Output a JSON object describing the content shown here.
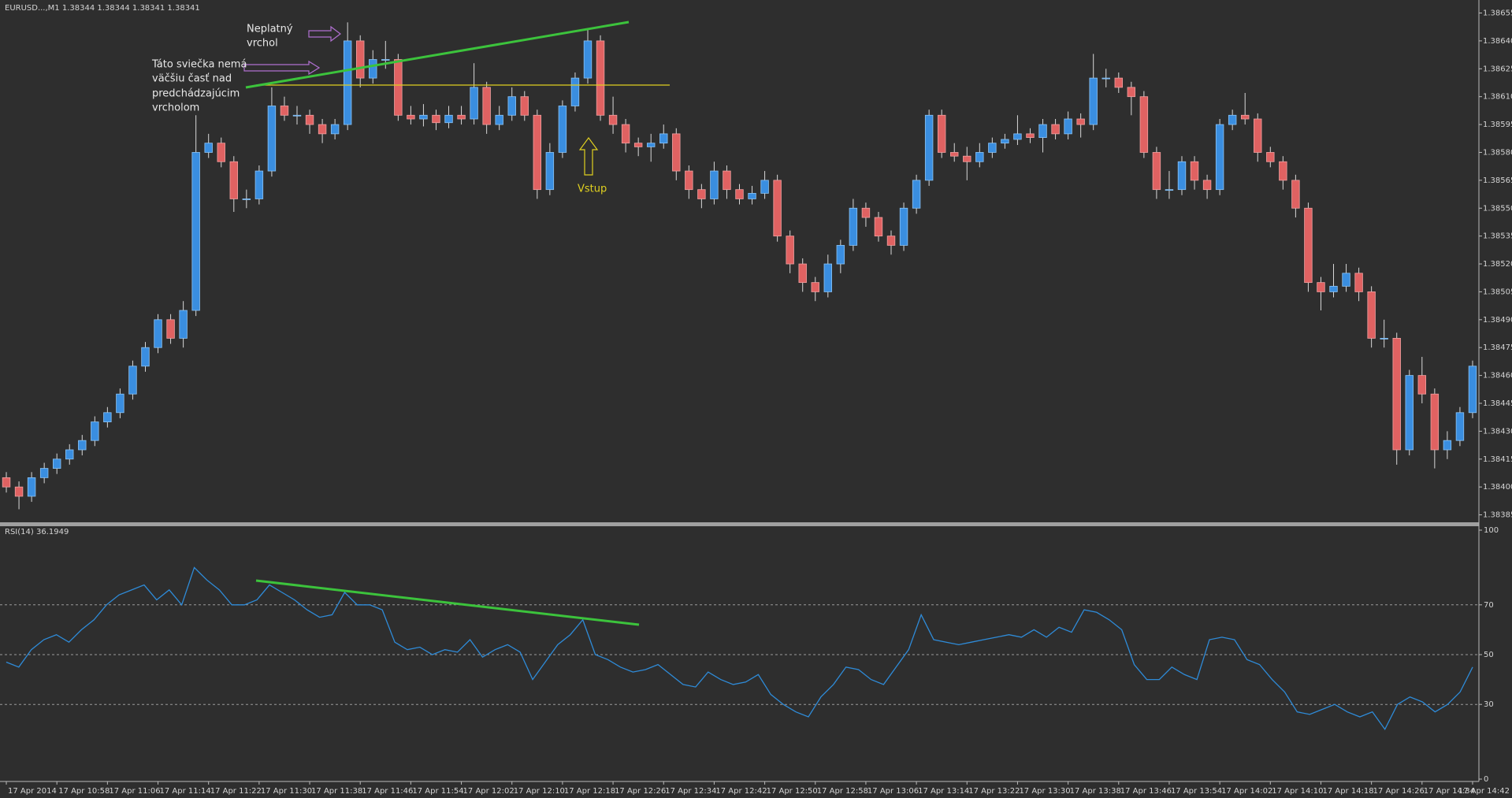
{
  "chart_data": [
    {
      "type": "candlestick",
      "title": "EURUSD...,M1  1.38344 1.38344 1.38341 1.38341",
      "categories": [
        "17 Apr 2014",
        null,
        null,
        null,
        "17 Apr 10:58",
        null,
        null,
        null,
        "17 Apr 11:06",
        null,
        null,
        null,
        "17 Apr 11:14",
        null,
        null,
        null,
        "17 Apr 11:22",
        null,
        null,
        null,
        "17 Apr 11:30",
        null,
        null,
        null,
        "17 Apr 11:38",
        null,
        null,
        null,
        "17 Apr 11:46",
        null,
        null,
        null,
        "17 Apr 11:54",
        null,
        null,
        null,
        "17 Apr 12:02",
        null,
        null,
        null,
        "17 Apr 12:10",
        null,
        null,
        null,
        "17 Apr 12:18",
        null,
        null,
        null,
        "17 Apr 12:26",
        null,
        null,
        null,
        "17 Apr 12:34",
        null,
        null,
        null,
        "17 Apr 12:42",
        null,
        null,
        null,
        "17 Apr 12:50",
        null,
        null,
        null,
        "17 Apr 12:58",
        null,
        null,
        null,
        "17 Apr 13:06",
        null,
        null,
        null,
        "17 Apr 13:14",
        null,
        null,
        null,
        "17 Apr 13:22",
        null,
        null,
        null,
        "17 Apr 13:30",
        null,
        null,
        null,
        "17 Apr 13:38",
        null,
        null,
        null,
        "17 Apr 13:46",
        null,
        null,
        null,
        "17 Apr 13:54",
        null,
        null,
        null,
        "17 Apr 14:02",
        null,
        null,
        null,
        "17 Apr 14:10",
        null,
        null,
        null,
        "17 Apr 14:18",
        null,
        null,
        null,
        "17 Apr 14:26",
        null,
        null,
        null,
        "17 Apr 14:34",
        null,
        null,
        null,
        "17 Apr 14:42"
      ],
      "open": [
        1.38405,
        1.384,
        1.38395,
        1.38405,
        1.3841,
        1.38415,
        1.3842,
        1.38425,
        1.38435,
        1.3844,
        1.3845,
        1.38465,
        1.38475,
        1.3849,
        1.3848,
        1.38495,
        1.3858,
        1.38585,
        1.38575,
        1.38555,
        1.38555,
        1.3857,
        1.38605,
        1.386,
        1.386,
        1.38595,
        1.3859,
        1.38595,
        1.3864,
        1.3862,
        1.3863,
        1.3863,
        1.386,
        1.38598,
        1.386,
        1.38596,
        1.386,
        1.38598,
        1.38615,
        1.38595,
        1.386,
        1.3861,
        1.386,
        1.3856,
        1.3858,
        1.38605,
        1.3862,
        1.3864,
        1.386,
        1.38595,
        1.38585,
        1.38583,
        1.38585,
        1.3859,
        1.3857,
        1.3856,
        1.38555,
        1.3857,
        1.3856,
        1.38555,
        1.38558,
        1.38565,
        1.38535,
        1.3852,
        1.3851,
        1.38505,
        1.3852,
        1.3853,
        1.3855,
        1.38545,
        1.38535,
        1.3853,
        1.3855,
        1.38565,
        1.386,
        1.3858,
        1.38578,
        1.38575,
        1.3858,
        1.38585,
        1.38587,
        1.3859,
        1.38588,
        1.38595,
        1.3859,
        1.38598,
        1.38595,
        1.3862,
        1.3862,
        1.38615,
        1.3861,
        1.3858,
        1.3856,
        1.3856,
        1.38575,
        1.38565,
        1.3856,
        1.38595,
        1.386,
        1.38598,
        1.3858,
        1.38575,
        1.38565,
        1.3855,
        1.3851,
        1.38505,
        1.38508,
        1.38515,
        1.38505,
        1.3848,
        1.3848,
        1.3842,
        1.3846,
        1.3845,
        1.3842,
        1.38425,
        1.3844
      ],
      "high": [
        1.38408,
        1.38403,
        1.38408,
        1.38413,
        1.38418,
        1.38423,
        1.38428,
        1.38438,
        1.38443,
        1.38453,
        1.38468,
        1.38478,
        1.38493,
        1.38493,
        1.385,
        1.386,
        1.3859,
        1.38588,
        1.38578,
        1.3856,
        1.38573,
        1.38615,
        1.3861,
        1.38605,
        1.38603,
        1.38598,
        1.38598,
        1.3865,
        1.38643,
        1.38635,
        1.3864,
        1.38633,
        1.38605,
        1.38606,
        1.38603,
        1.38605,
        1.38605,
        1.38628,
        1.38618,
        1.38605,
        1.38615,
        1.38613,
        1.38603,
        1.38585,
        1.38608,
        1.38623,
        1.38646,
        1.38643,
        1.3861,
        1.38598,
        1.38588,
        1.3859,
        1.38595,
        1.38593,
        1.38573,
        1.38563,
        1.38575,
        1.38573,
        1.38563,
        1.38562,
        1.3857,
        1.38568,
        1.38538,
        1.38523,
        1.38513,
        1.38525,
        1.38533,
        1.38555,
        1.38553,
        1.38548,
        1.38538,
        1.38553,
        1.38568,
        1.38603,
        1.38603,
        1.38585,
        1.38583,
        1.38585,
        1.38588,
        1.3859,
        1.386,
        1.38593,
        1.38598,
        1.38598,
        1.38602,
        1.38601,
        1.38633,
        1.38625,
        1.38623,
        1.38618,
        1.38613,
        1.38583,
        1.3857,
        1.38578,
        1.38578,
        1.38568,
        1.38598,
        1.38603,
        1.38612,
        1.38601,
        1.38583,
        1.38578,
        1.38568,
        1.38553,
        1.38513,
        1.3852,
        1.3852,
        1.38518,
        1.38508,
        1.3849,
        1.38483,
        1.38463,
        1.3847,
        1.38453,
        1.3843,
        1.38443,
        1.38468
      ],
      "low": [
        1.38397,
        1.38388,
        1.38392,
        1.38402,
        1.38407,
        1.38412,
        1.38417,
        1.38422,
        1.38432,
        1.38437,
        1.38447,
        1.38462,
        1.38472,
        1.38477,
        1.38475,
        1.38492,
        1.38577,
        1.38572,
        1.38548,
        1.3855,
        1.38552,
        1.38567,
        1.38597,
        1.38595,
        1.3859,
        1.38585,
        1.38587,
        1.38592,
        1.38615,
        1.38617,
        1.38625,
        1.38597,
        1.38595,
        1.38594,
        1.38592,
        1.38593,
        1.38595,
        1.38595,
        1.3859,
        1.38592,
        1.38597,
        1.38597,
        1.38555,
        1.38557,
        1.38577,
        1.38602,
        1.38617,
        1.38597,
        1.3859,
        1.3858,
        1.38578,
        1.38575,
        1.38582,
        1.38565,
        1.38555,
        1.3855,
        1.38552,
        1.38555,
        1.38552,
        1.38552,
        1.38555,
        1.38532,
        1.38515,
        1.38505,
        1.385,
        1.38502,
        1.38515,
        1.38527,
        1.3854,
        1.38532,
        1.38525,
        1.38527,
        1.38547,
        1.38562,
        1.38577,
        1.38575,
        1.38565,
        1.38572,
        1.38577,
        1.38582,
        1.38584,
        1.38585,
        1.3858,
        1.38587,
        1.38587,
        1.38588,
        1.38592,
        1.38615,
        1.38612,
        1.386,
        1.38577,
        1.38555,
        1.38555,
        1.38557,
        1.3856,
        1.38555,
        1.38557,
        1.38592,
        1.38595,
        1.38575,
        1.38572,
        1.3856,
        1.38545,
        1.38505,
        1.38495,
        1.38502,
        1.38505,
        1.385,
        1.38475,
        1.38475,
        1.38412,
        1.38417,
        1.38445,
        1.3841,
        1.38415,
        1.38422,
        1.38437
      ],
      "close": [
        1.384,
        1.38395,
        1.38405,
        1.3841,
        1.38415,
        1.3842,
        1.38425,
        1.38435,
        1.3844,
        1.3845,
        1.38465,
        1.38475,
        1.3849,
        1.3848,
        1.38495,
        1.3858,
        1.38585,
        1.38575,
        1.38555,
        1.38555,
        1.3857,
        1.38605,
        1.386,
        1.386,
        1.38595,
        1.3859,
        1.38595,
        1.3864,
        1.3862,
        1.3863,
        1.3863,
        1.386,
        1.38598,
        1.386,
        1.38596,
        1.386,
        1.38598,
        1.38615,
        1.38595,
        1.386,
        1.3861,
        1.386,
        1.3856,
        1.3858,
        1.38605,
        1.3862,
        1.3864,
        1.386,
        1.38595,
        1.38585,
        1.38583,
        1.38585,
        1.3859,
        1.3857,
        1.3856,
        1.38555,
        1.3857,
        1.3856,
        1.38555,
        1.38558,
        1.38565,
        1.38535,
        1.3852,
        1.3851,
        1.38505,
        1.3852,
        1.3853,
        1.3855,
        1.38545,
        1.38535,
        1.3853,
        1.3855,
        1.38565,
        1.386,
        1.3858,
        1.38578,
        1.38575,
        1.3858,
        1.38585,
        1.38587,
        1.3859,
        1.38588,
        1.38595,
        1.3859,
        1.38598,
        1.38595,
        1.3862,
        1.3862,
        1.38615,
        1.3861,
        1.3858,
        1.3856,
        1.3856,
        1.38575,
        1.38565,
        1.3856,
        1.38595,
        1.386,
        1.38598,
        1.3858,
        1.38575,
        1.38565,
        1.3855,
        1.3851,
        1.38505,
        1.38508,
        1.38515,
        1.38505,
        1.3848,
        1.3848,
        1.3842,
        1.3846,
        1.3845,
        1.3842,
        1.38425,
        1.3844,
        1.38465
      ],
      "up_color": "#3a8ee0",
      "down_color": "#e06262",
      "ylim": [
        1.38381,
        1.38662
      ],
      "yticks": [
        1.38385,
        {
          "value": 1.384,
          "label": "1.38400"
        },
        1.38415,
        {
          "value": 1.3843,
          "label": "1.38430"
        },
        1.38445,
        {
          "value": 1.3846,
          "label": "1.38460"
        },
        1.38475,
        {
          "value": 1.3849,
          "label": "1.38490"
        },
        1.38505,
        {
          "value": 1.3852,
          "label": "1.38520"
        },
        1.38535,
        {
          "value": 1.3855,
          "label": "1.38550"
        },
        1.38565,
        {
          "value": 1.3858,
          "label": "1.38580"
        },
        1.38595,
        {
          "value": 1.3861,
          "label": "1.38610"
        },
        1.38625,
        {
          "value": 1.3864,
          "label": "1.38640"
        },
        1.38655
      ],
      "annotations": [
        "Neplatný",
        "vrchol",
        "Táto sviečka nemá",
        "väčšiu časť nad",
        "predchádzajúcim",
        "vrcholom",
        "Vstup"
      ]
    },
    {
      "type": "line",
      "title": "RSI(14) 36.1949",
      "series": [
        {
          "color": "#2e8bd8",
          "values": [
            47,
            45,
            52,
            56,
            58,
            55,
            60,
            64,
            70,
            74,
            76,
            78,
            72,
            76,
            70,
            85,
            80,
            76,
            70,
            70,
            72,
            78,
            75,
            72,
            68,
            65,
            66,
            75,
            70,
            70,
            68,
            55,
            52,
            53,
            50,
            52,
            51,
            56,
            49,
            52,
            54,
            51,
            40,
            47,
            54,
            58,
            64,
            50,
            48,
            45,
            43,
            44,
            46,
            42,
            38,
            37,
            43,
            40,
            38,
            39,
            42,
            34,
            30,
            27,
            25,
            33,
            38,
            45,
            44,
            40,
            38,
            45,
            52,
            66,
            56,
            55,
            54,
            55,
            56,
            57,
            58,
            57,
            60,
            57,
            61,
            59,
            68,
            67,
            64,
            60,
            46,
            40,
            40,
            45,
            42,
            40,
            56,
            57,
            56,
            48,
            46,
            40,
            35,
            27,
            26,
            28,
            30,
            27,
            25,
            27,
            20,
            30,
            33,
            31,
            27,
            30,
            35,
            45
          ]
        }
      ],
      "ylim": [
        0,
        100
      ],
      "yticks": [
        0,
        30,
        50,
        70,
        100
      ],
      "levels": [
        30,
        50,
        70
      ]
    }
  ]
}
